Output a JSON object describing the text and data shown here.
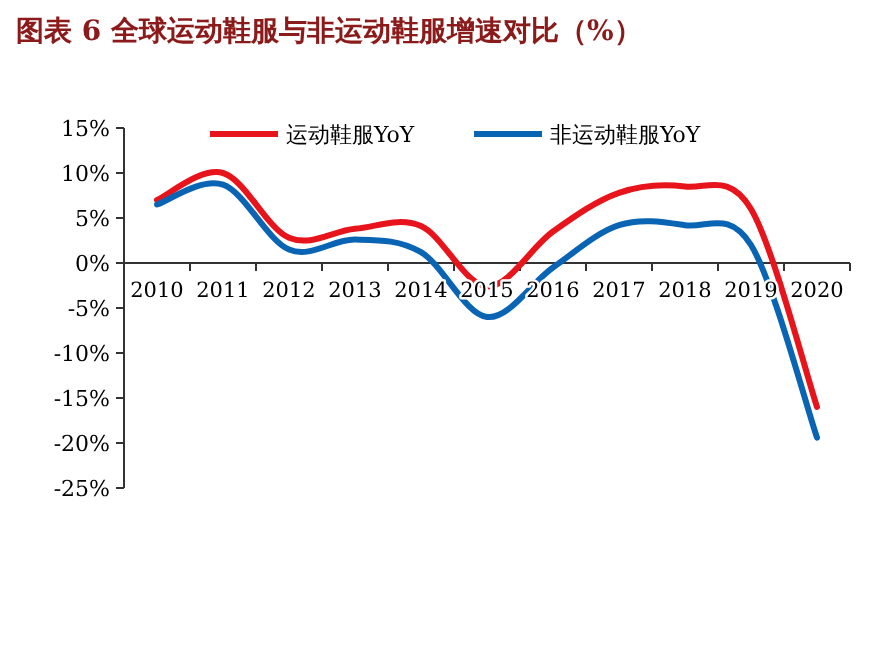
{
  "chart_data": {
    "type": "line",
    "title": "图表 6   全球运动鞋服与非运动鞋服增速对比（%）",
    "categories": [
      "2010",
      "2011",
      "2012",
      "2013",
      "2014",
      "2015",
      "2016",
      "2017",
      "2018",
      "2019",
      "2020"
    ],
    "series": [
      {
        "name": "运动鞋服YoY",
        "color": "#e8141c",
        "values": [
          7.0,
          10.0,
          2.8,
          3.8,
          4.1,
          -2.6,
          3.5,
          7.8,
          8.5,
          6.0,
          -16.0
        ]
      },
      {
        "name": "非运动鞋服YoY",
        "color": "#0a64b4",
        "values": [
          6.5,
          8.7,
          1.5,
          2.6,
          1.2,
          -6.0,
          -0.5,
          4.2,
          4.2,
          2.0,
          -19.4
        ]
      }
    ],
    "ylim": [
      -25,
      15
    ],
    "yticks": [
      {
        "value": 15,
        "label": "15%"
      },
      {
        "value": 10,
        "label": "10%"
      },
      {
        "value": 5,
        "label": "5%"
      },
      {
        "value": 0,
        "label": "0%"
      },
      {
        "value": -5,
        "label": "-5%"
      },
      {
        "value": -10,
        "label": "-10%"
      },
      {
        "value": -15,
        "label": "-15%"
      },
      {
        "value": -20,
        "label": "-20%"
      },
      {
        "value": -25,
        "label": "-25%"
      }
    ],
    "grid": false,
    "legend": "top",
    "marker": "none",
    "line_style": "solid"
  }
}
